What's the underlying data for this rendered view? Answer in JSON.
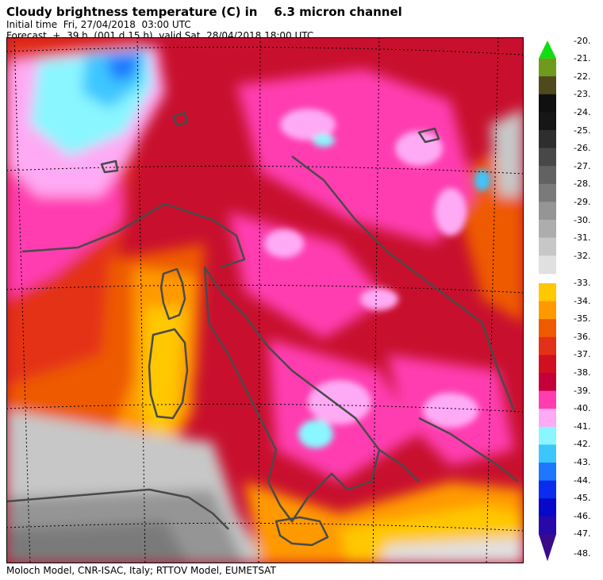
{
  "header": {
    "title": "Cloudy brightness temperature (C) in    6.3 micron channel",
    "initial_time": "Initial time  Fri, 27/04/2018  03:00 UTC",
    "forecast": "Forecast  +  39 h  (001 d 15 h)  valid Sat, 28/04/2018 18:00 UTC"
  },
  "footer": {
    "credit": "Moloch Model, CNR-ISAC, Italy; RTTOV Model, EUMETSAT"
  },
  "colorbar": {
    "upper": [
      {
        "label": "-20.",
        "color": "#11dd11"
      },
      {
        "label": "-21.",
        "color": "#6f9a1c"
      },
      {
        "label": "-22.",
        "color": "#4e4a1e"
      },
      {
        "label": "-23.",
        "color": "#101010"
      },
      {
        "label": "-24.",
        "color": "#161616"
      },
      {
        "label": "-25.",
        "color": "#2e2e2e"
      },
      {
        "label": "-26.",
        "color": "#484848"
      },
      {
        "label": "-27.",
        "color": "#626262"
      },
      {
        "label": "-28.",
        "color": "#7a7a7a"
      },
      {
        "label": "-29.",
        "color": "#959595"
      },
      {
        "label": "-30.",
        "color": "#adadad"
      },
      {
        "label": "-31.",
        "color": "#c7c7c7"
      },
      {
        "label": "-32.",
        "color": "#e0e0e0"
      }
    ],
    "lower": [
      {
        "label": "-33.",
        "color": "#ffc800"
      },
      {
        "label": "-34.",
        "color": "#ff9900"
      },
      {
        "label": "-35.",
        "color": "#ee5a00"
      },
      {
        "label": "-36.",
        "color": "#e43018"
      },
      {
        "label": "-37.",
        "color": "#d01020"
      },
      {
        "label": "-38.",
        "color": "#c4003a"
      },
      {
        "label": "-39.",
        "color": "#ff3cb0"
      },
      {
        "label": "-40.",
        "color": "#ffaaf4"
      },
      {
        "label": "-41.",
        "color": "#8af6ff"
      },
      {
        "label": "-42.",
        "color": "#3cc6ff"
      },
      {
        "label": "-43.",
        "color": "#1e78ff"
      },
      {
        "label": "-44.",
        "color": "#0a2cf0"
      },
      {
        "label": "-45.",
        "color": "#0808c8"
      },
      {
        "label": "-46.",
        "color": "#2808a8"
      },
      {
        "label": "-47.",
        "color": "#3a0a8c"
      }
    ],
    "last_label": "-48."
  }
}
